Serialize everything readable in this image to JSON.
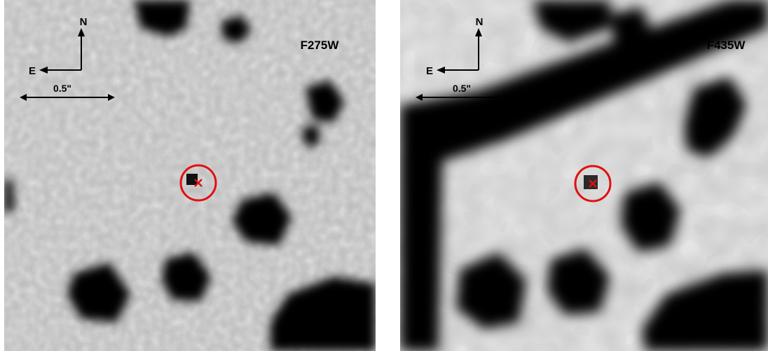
{
  "panels": [
    {
      "filter_label": "F275W",
      "compass": {
        "north": "N",
        "east": "E"
      },
      "scale_bar_label": "0.5\"",
      "marker_color": "#e01010"
    },
    {
      "filter_label": "F435W",
      "compass": {
        "north": "N",
        "east": "E"
      },
      "scale_bar_label": "0.5\"",
      "marker_color": "#e01010"
    }
  ]
}
